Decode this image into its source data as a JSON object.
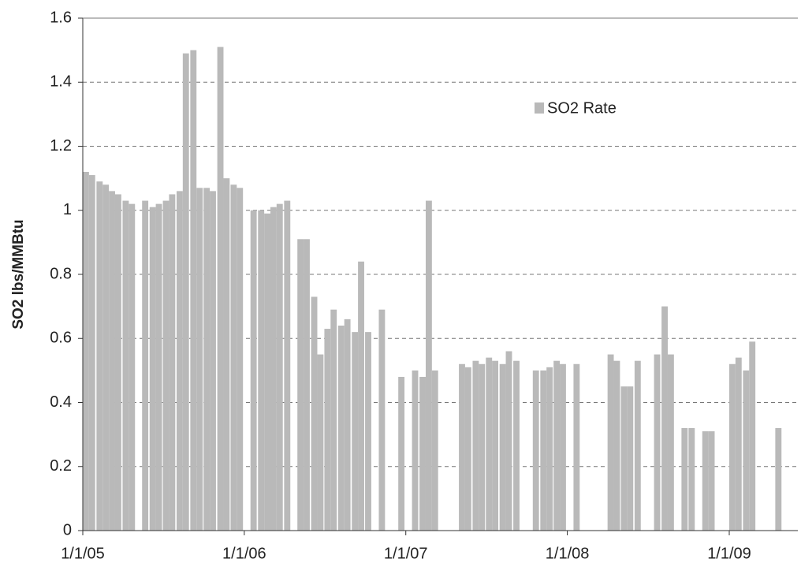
{
  "chart_data": {
    "type": "bar",
    "y_label": "SO2 lbs/MMBtu",
    "series": [
      {
        "name": "SO2 Rate",
        "color": "#b9b9b9",
        "x": [
          "1/1/05",
          "1/15/05",
          "2/1/05",
          "2/15/05",
          "3/1/05",
          "3/15/05",
          "4/1/05",
          "4/15/05",
          "5/15/05",
          "6/1/05",
          "6/15/05",
          "7/1/05",
          "7/15/05",
          "8/1/05",
          "8/15/05",
          "9/1/05",
          "9/15/05",
          "10/1/05",
          "10/15/05",
          "11/1/05",
          "11/15/05",
          "12/1/05",
          "12/15/05",
          "1/15/06",
          "2/1/06",
          "2/15/06",
          "3/1/06",
          "3/15/06",
          "4/1/06",
          "5/1/06",
          "5/15/06",
          "6/1/06",
          "6/15/06",
          "7/1/06",
          "7/15/06",
          "8/1/06",
          "8/15/06",
          "9/1/06",
          "9/15/06",
          "10/1/06",
          "11/1/06",
          "12/15/06",
          "1/15/07",
          "2/1/07",
          "2/15/07",
          "3/1/07",
          "5/1/07",
          "5/15/07",
          "6/1/07",
          "6/15/07",
          "7/1/07",
          "7/15/07",
          "8/1/07",
          "8/15/07",
          "9/1/07",
          "10/15/07",
          "11/1/07",
          "11/15/07",
          "12/1/07",
          "12/15/07",
          "1/15/08",
          "4/1/08",
          "4/15/08",
          "5/1/08",
          "5/15/08",
          "6/1/08",
          "7/15/08",
          "8/1/08",
          "8/15/08",
          "9/15/08",
          "10/1/08",
          "11/1/08",
          "11/15/08",
          "1/1/09",
          "1/15/09",
          "2/1/09",
          "2/15/09",
          "4/15/09"
        ],
        "values": [
          1.12,
          1.11,
          1.09,
          1.08,
          1.06,
          1.05,
          1.03,
          1.02,
          1.03,
          1.01,
          1.02,
          1.03,
          1.05,
          1.06,
          1.49,
          1.5,
          1.07,
          1.07,
          1.06,
          1.51,
          1.1,
          1.08,
          1.07,
          1.0,
          1.0,
          0.99,
          1.01,
          1.02,
          1.03,
          0.91,
          0.91,
          0.73,
          0.55,
          0.63,
          0.69,
          0.64,
          0.66,
          0.62,
          0.84,
          0.62,
          0.69,
          0.48,
          0.5,
          0.48,
          1.03,
          0.5,
          0.52,
          0.51,
          0.53,
          0.52,
          0.54,
          0.53,
          0.52,
          0.56,
          0.53,
          0.5,
          0.5,
          0.51,
          0.53,
          0.52,
          0.52,
          0.55,
          0.53,
          0.45,
          0.45,
          0.53,
          0.55,
          0.7,
          0.55,
          0.32,
          0.32,
          0.31,
          0.31,
          0.52,
          0.54,
          0.5,
          0.59,
          0.32
        ]
      }
    ],
    "xlim": [
      "1/1/05",
      "6/5/09"
    ],
    "xticks": [
      "1/1/05",
      "1/1/06",
      "1/1/07",
      "1/1/08",
      "1/1/09"
    ],
    "ylim": [
      0,
      1.6
    ],
    "yticks": [
      0,
      0.2,
      0.4,
      0.6,
      0.8,
      1,
      1.2,
      1.4,
      1.6
    ],
    "grid": true
  }
}
